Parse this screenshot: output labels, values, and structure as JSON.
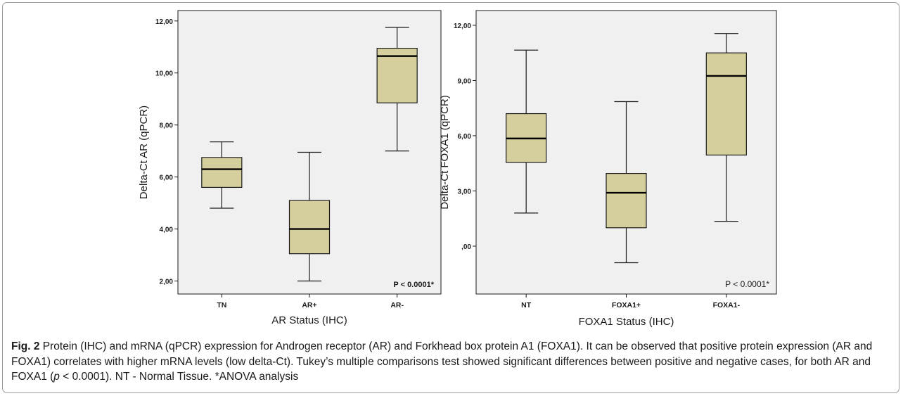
{
  "chart_data": [
    {
      "type": "boxplot",
      "title": "",
      "xlabel": "AR Status (IHC)",
      "ylabel": "Delta-Ct AR (qPCR)",
      "ylim": [
        1.5,
        12.4
      ],
      "yticks": [
        2,
        4,
        6,
        8,
        10,
        12
      ],
      "ytick_labels": [
        "2,00",
        "4,00",
        "6,00",
        "8,00",
        "10,00",
        "12,00"
      ],
      "categories": [
        "TN",
        "AR+",
        "AR-"
      ],
      "boxes": [
        {
          "category": "TN",
          "whisker_low": 4.8,
          "q1": 5.6,
          "median": 6.3,
          "q3": 6.75,
          "whisker_high": 7.35
        },
        {
          "category": "AR+",
          "whisker_low": 2.0,
          "q1": 3.05,
          "median": 4.0,
          "q3": 5.1,
          "whisker_high": 6.95
        },
        {
          "category": "AR-",
          "whisker_low": 7.0,
          "q1": 8.85,
          "median": 10.65,
          "q3": 10.95,
          "whisker_high": 11.75
        }
      ],
      "annotation": "P < 0.0001*",
      "grid": false,
      "box_color": "#d5ce9d"
    },
    {
      "type": "boxplot",
      "title": "",
      "xlabel": "FOXA1 Status (IHC)",
      "ylabel": "Delta-Ct FOXA1 (qPCR)",
      "ylim": [
        -2.6,
        12.8
      ],
      "yticks": [
        0,
        3,
        6,
        9,
        12
      ],
      "ytick_labels": [
        ",00",
        "3,00",
        "6,00",
        "9,00",
        "12,00"
      ],
      "categories": [
        "NT",
        "FOXA1+",
        "FOXA1-"
      ],
      "boxes": [
        {
          "category": "NT",
          "whisker_low": 1.8,
          "q1": 4.55,
          "median": 5.85,
          "q3": 7.2,
          "whisker_high": 10.65
        },
        {
          "category": "FOXA1+",
          "whisker_low": -0.9,
          "q1": 1.0,
          "median": 2.9,
          "q3": 3.95,
          "whisker_high": 7.85
        },
        {
          "category": "FOXA1-",
          "whisker_low": 1.35,
          "q1": 4.95,
          "median": 9.25,
          "q3": 10.5,
          "whisker_high": 11.55
        }
      ],
      "annotation": "P < 0.0001*",
      "grid": false,
      "box_color": "#d5ce9d"
    }
  ],
  "caption": {
    "label": "Fig. 2",
    "text_1": " Protein (IHC) and mRNA (qPCR) expression for Androgen receptor (AR) and Forkhead box protein A1 (FOXA1). It can be observed that positive protein expression (AR and FOXA1) correlates with higher mRNA levels (low delta-Ct). Tukey’s multiple comparisons test showed significant differences between positive and negative cases, for both AR and FOXA1 (",
    "p_italic": "p",
    "text_2": " < 0.0001). NT - Normal Tissue. *ANOVA analysis"
  }
}
